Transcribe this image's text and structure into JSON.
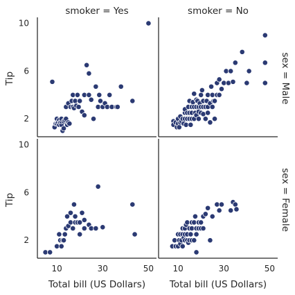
{
  "chart_data": {
    "type": "scatter",
    "xlabel": "Total bill (US Dollars)",
    "ylabel": "Tip",
    "xticks": [
      10,
      30,
      50
    ],
    "yticks": [
      2,
      6,
      10
    ],
    "xlim": [
      1.5,
      53.5
    ],
    "ylim": [
      0.5,
      10.5
    ],
    "point_color": "#2b3a73",
    "background": "#ffffff",
    "grid": false,
    "col_titles": [
      "smoker = Yes",
      "smoker = No"
    ],
    "row_titles": [
      "sex = Male",
      "sex = Female"
    ],
    "facets": [
      {
        "row": 0,
        "col": 0,
        "points": [
          [
            8,
            5.1
          ],
          [
            9,
            1.3
          ],
          [
            9.5,
            1.6
          ],
          [
            10,
            1.6
          ],
          [
            10,
            2.0
          ],
          [
            10.5,
            1.7
          ],
          [
            11,
            1.5
          ],
          [
            11,
            1.9
          ],
          [
            11.5,
            1.7
          ],
          [
            12,
            1.5
          ],
          [
            12,
            1.8
          ],
          [
            12,
            2.0
          ],
          [
            12.5,
            1.0
          ],
          [
            13,
            1.2
          ],
          [
            13,
            1.8
          ],
          [
            13.5,
            1.9
          ],
          [
            14,
            2.0
          ],
          [
            14.5,
            1.5
          ],
          [
            15,
            1.7
          ],
          [
            15.5,
            1.6
          ],
          [
            14,
            3.0
          ],
          [
            15,
            3.3
          ],
          [
            16,
            3.0
          ],
          [
            16.5,
            3.5
          ],
          [
            17,
            3.0
          ],
          [
            17,
            4.0
          ],
          [
            17.5,
            2.9
          ],
          [
            18,
            3.5
          ],
          [
            18.5,
            3.1
          ],
          [
            19,
            4.0
          ],
          [
            19.5,
            3.0
          ],
          [
            20,
            3.5
          ],
          [
            21,
            2.6
          ],
          [
            22,
            4.0
          ],
          [
            22,
            2.3
          ],
          [
            23,
            6.5
          ],
          [
            24,
            5.8
          ],
          [
            24,
            4.0
          ],
          [
            25,
            3.6
          ],
          [
            26,
            2.0
          ],
          [
            27,
            4.7
          ],
          [
            28,
            3.0
          ],
          [
            28.5,
            4.0
          ],
          [
            29,
            3.5
          ],
          [
            30,
            3.0
          ],
          [
            31,
            3.3
          ],
          [
            32,
            3.0
          ],
          [
            33,
            4.0
          ],
          [
            34,
            3.0
          ],
          [
            36,
            3.0
          ],
          [
            36.5,
            3.0
          ],
          [
            38,
            4.7
          ],
          [
            43,
            3.5
          ],
          [
            50,
            10.0
          ]
        ]
      },
      {
        "row": 0,
        "col": 1,
        "points": [
          [
            8,
            1.8
          ],
          [
            8,
            1.5
          ],
          [
            9,
            1.7
          ],
          [
            9.5,
            1.3
          ],
          [
            10,
            1.6
          ],
          [
            10,
            2.0
          ],
          [
            10.5,
            1.3
          ],
          [
            11,
            2.2
          ],
          [
            11,
            1.7
          ],
          [
            11.5,
            1.8
          ],
          [
            12,
            2.0
          ],
          [
            12.5,
            1.6
          ],
          [
            13,
            2.0
          ],
          [
            13,
            2.5
          ],
          [
            13,
            2.8
          ],
          [
            13.5,
            1.5
          ],
          [
            14,
            2.0
          ],
          [
            14,
            2.5
          ],
          [
            14.5,
            3.0
          ],
          [
            15,
            2.0
          ],
          [
            15,
            3.5
          ],
          [
            15,
            2.5
          ],
          [
            15.5,
            1.5
          ],
          [
            16,
            2.0
          ],
          [
            16,
            2.5
          ],
          [
            16,
            3.0
          ],
          [
            16.5,
            3.4
          ],
          [
            17,
            2.0
          ],
          [
            17,
            3.0
          ],
          [
            17,
            4.1
          ],
          [
            17.5,
            2.5
          ],
          [
            18,
            3.0
          ],
          [
            18,
            2.3
          ],
          [
            18,
            3.6
          ],
          [
            18.5,
            3.5
          ],
          [
            19,
            3.0
          ],
          [
            19,
            2.0
          ],
          [
            19,
            2.6
          ],
          [
            19.5,
            3.3
          ],
          [
            20,
            2.5
          ],
          [
            20,
            3.0
          ],
          [
            20,
            4.0
          ],
          [
            20.5,
            4.4
          ],
          [
            21,
            3.0
          ],
          [
            21,
            2.4
          ],
          [
            21,
            3.5
          ],
          [
            22,
            3.0
          ],
          [
            22,
            2.0
          ],
          [
            22.5,
            3.5
          ],
          [
            23,
            2.5
          ],
          [
            23,
            3.0
          ],
          [
            23,
            4.0
          ],
          [
            24,
            1.7
          ],
          [
            24,
            3.3
          ],
          [
            24.5,
            4.7
          ],
          [
            25,
            3.0
          ],
          [
            25,
            4.0
          ],
          [
            25.5,
            3.5
          ],
          [
            26,
            2.0
          ],
          [
            26,
            3.5
          ],
          [
            27,
            4.0
          ],
          [
            27,
            5.0
          ],
          [
            28,
            4.0
          ],
          [
            28,
            5.3
          ],
          [
            29,
            4.5
          ],
          [
            30,
            5.0
          ],
          [
            31,
            6.0
          ],
          [
            32,
            5.0
          ],
          [
            33,
            6.0
          ],
          [
            34,
            5.1
          ],
          [
            35,
            6.7
          ],
          [
            38,
            7.6
          ],
          [
            40,
            5.0
          ],
          [
            41,
            6.0
          ],
          [
            48,
            9.0
          ],
          [
            48,
            6.7
          ],
          [
            48,
            5.0
          ]
        ]
      },
      {
        "row": 1,
        "col": 0,
        "points": [
          [
            5,
            1.0
          ],
          [
            7,
            1.0
          ],
          [
            10,
            1.5
          ],
          [
            11,
            2.5
          ],
          [
            11.5,
            2.0
          ],
          [
            12,
            1.5
          ],
          [
            12.5,
            2.0
          ],
          [
            13,
            2.0
          ],
          [
            13.5,
            2.5
          ],
          [
            14,
            3.0
          ],
          [
            14.5,
            4.0
          ],
          [
            15,
            3.2
          ],
          [
            16,
            3.5
          ],
          [
            16,
            4.3
          ],
          [
            17,
            3.0
          ],
          [
            17.5,
            5.0
          ],
          [
            18,
            3.5
          ],
          [
            18,
            4.0
          ],
          [
            19,
            3.5
          ],
          [
            20,
            2.5
          ],
          [
            20,
            3.5
          ],
          [
            21,
            4.3
          ],
          [
            22,
            3.0
          ],
          [
            22,
            3.7
          ],
          [
            24,
            3.3
          ],
          [
            25,
            3.0
          ],
          [
            27,
            3.0
          ],
          [
            28,
            6.5
          ],
          [
            30,
            3.1
          ],
          [
            43,
            5.0
          ],
          [
            44,
            2.5
          ]
        ]
      },
      {
        "row": 1,
        "col": 1,
        "points": [
          [
            7.5,
            1.5
          ],
          [
            8.5,
            2.0
          ],
          [
            9,
            1.5
          ],
          [
            10,
            1.5
          ],
          [
            10,
            2.5
          ],
          [
            10.5,
            2.0
          ],
          [
            11,
            1.7
          ],
          [
            11,
            2.5
          ],
          [
            11.5,
            2.0
          ],
          [
            12,
            1.5
          ],
          [
            12,
            2.5
          ],
          [
            12,
            3.0
          ],
          [
            12.5,
            2.2
          ],
          [
            13,
            2.0
          ],
          [
            13,
            2.5
          ],
          [
            13,
            3.0
          ],
          [
            13.5,
            3.3
          ],
          [
            14,
            2.0
          ],
          [
            14,
            2.5
          ],
          [
            14,
            3.5
          ],
          [
            14.5,
            1.8
          ],
          [
            15,
            2.0
          ],
          [
            15,
            3.0
          ],
          [
            15.5,
            2.5
          ],
          [
            16,
            2.0
          ],
          [
            16,
            3.0
          ],
          [
            16,
            3.5
          ],
          [
            17,
            2.0
          ],
          [
            17,
            3.5
          ],
          [
            17.5,
            4.0
          ],
          [
            18,
            1.0
          ],
          [
            18,
            2.5
          ],
          [
            18,
            3.0
          ],
          [
            19,
            3.0
          ],
          [
            19,
            3.5
          ],
          [
            20,
            3.0
          ],
          [
            20,
            3.5
          ],
          [
            21,
            3.0
          ],
          [
            21,
            4.0
          ],
          [
            22,
            4.2
          ],
          [
            23,
            4.7
          ],
          [
            24,
            2.0
          ],
          [
            25,
            4.0
          ],
          [
            27,
            5.0
          ],
          [
            28,
            4.5
          ],
          [
            29,
            5.0
          ],
          [
            33,
            4.5
          ],
          [
            34,
            5.2
          ],
          [
            35,
            5.0
          ],
          [
            35.5,
            4.6
          ]
        ]
      }
    ]
  }
}
